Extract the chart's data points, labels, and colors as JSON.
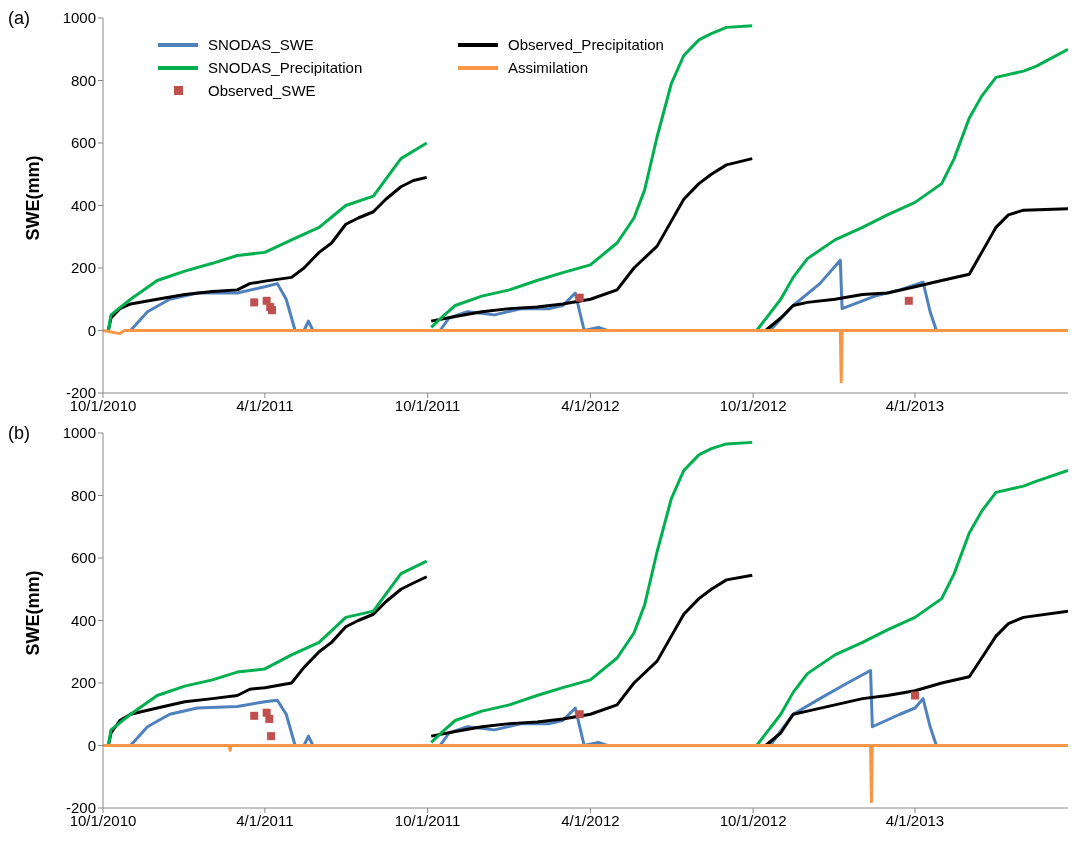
{
  "chart_data": [
    {
      "type": "line",
      "title": "(a)",
      "ylabel": "SWE(mm)",
      "xlim": [
        "2010-10-01",
        "2013-09-20"
      ],
      "xticks": [
        {
          "value": "2010-10-01",
          "label": "10/1/2010"
        },
        {
          "value": "2011-04-01",
          "label": "4/1/2011"
        },
        {
          "value": "2011-10-01",
          "label": "10/1/2011"
        },
        {
          "value": "2012-04-01",
          "label": "4/1/2012"
        },
        {
          "value": "2012-10-01",
          "label": "10/1/2012"
        },
        {
          "value": "2013-04-01",
          "label": "4/1/2013"
        }
      ],
      "ylim": [
        -200,
        1000
      ],
      "yticks": [
        -200,
        0,
        200,
        400,
        600,
        800,
        1000
      ],
      "legend": "top",
      "series": [
        {
          "name": "SNODAS_SWE",
          "color": "#4f81bd",
          "x": [
            "2010-11-01",
            "2010-11-20",
            "2010-12-15",
            "2011-01-15",
            "2011-03-01",
            "2011-04-01",
            "2011-04-15",
            "2011-04-25",
            "2011-05-05",
            "2011-05-15",
            "2011-05-20",
            "2011-05-25",
            "2011-10-01",
            "2011-10-15",
            "2011-10-25",
            "2011-11-15",
            "2011-12-15",
            "2012-01-15",
            "2012-02-15",
            "2012-03-01",
            "2012-03-15",
            "2012-03-25",
            "2012-04-10",
            "2012-04-20",
            "2012-10-01",
            "2012-10-20",
            "2012-11-15",
            "2012-12-15",
            "2013-01-07",
            "2013-01-09",
            "2013-02-15",
            "2013-03-15",
            "2013-04-10",
            "2013-04-18",
            "2013-04-25"
          ],
          "values": [
            0,
            60,
            100,
            120,
            120,
            140,
            150,
            100,
            0,
            0,
            30,
            0,
            null,
            0,
            40,
            60,
            50,
            70,
            70,
            80,
            120,
            0,
            10,
            0,
            null,
            0,
            80,
            150,
            225,
            70,
            110,
            130,
            155,
            60,
            0
          ]
        },
        {
          "name": "Observed_Precipitation",
          "color": "#000000",
          "x": [
            "2010-10-07",
            "2010-10-10",
            "2010-10-20",
            "2010-11-01",
            "2010-12-01",
            "2011-01-01",
            "2011-02-01",
            "2011-03-01",
            "2011-03-15",
            "2011-04-01",
            "2011-05-01",
            "2011-05-15",
            "2011-06-01",
            "2011-06-15",
            "2011-07-01",
            "2011-07-15",
            "2011-08-01",
            "2011-08-15",
            "2011-09-01",
            "2011-09-15",
            "2011-09-30",
            "2011-10-02",
            "2011-10-05",
            "2011-11-01",
            "2011-12-01",
            "2012-01-01",
            "2012-02-01",
            "2012-03-01",
            "2012-04-01",
            "2012-05-01",
            "2012-05-20",
            "2012-06-15",
            "2012-07-01",
            "2012-07-15",
            "2012-08-01",
            "2012-08-15",
            "2012-09-01",
            "2012-09-30",
            "2012-10-02",
            "2012-10-15",
            "2012-11-01",
            "2012-11-15",
            "2012-12-01",
            "2013-01-01",
            "2013-02-01",
            "2013-03-01",
            "2013-04-01",
            "2013-05-01",
            "2013-06-01",
            "2013-06-15",
            "2013-07-01",
            "2013-07-15",
            "2013-08-01",
            "2013-09-20"
          ],
          "values": [
            0,
            40,
            70,
            85,
            100,
            115,
            125,
            130,
            150,
            158,
            170,
            200,
            250,
            280,
            340,
            360,
            380,
            420,
            460,
            480,
            490,
            null,
            30,
            45,
            60,
            70,
            75,
            85,
            100,
            130,
            200,
            270,
            350,
            420,
            470,
            500,
            530,
            550,
            null,
            0,
            40,
            80,
            90,
            100,
            115,
            120,
            140,
            160,
            180,
            250,
            330,
            370,
            385,
            390
          ]
        },
        {
          "name": "SNODAS_Precipitation",
          "color": "#00b050",
          "x": [
            "2010-10-07",
            "2010-10-10",
            "2010-11-01",
            "2010-12-01",
            "2011-01-01",
            "2011-02-01",
            "2011-03-01",
            "2011-04-01",
            "2011-05-01",
            "2011-06-01",
            "2011-07-01",
            "2011-08-01",
            "2011-09-01",
            "2011-09-30",
            "2011-10-02",
            "2011-10-05",
            "2011-10-20",
            "2011-11-01",
            "2011-12-01",
            "2012-01-01",
            "2012-02-01",
            "2012-03-01",
            "2012-04-01",
            "2012-05-01",
            "2012-05-20",
            "2012-06-01",
            "2012-06-15",
            "2012-07-01",
            "2012-07-15",
            "2012-08-01",
            "2012-08-15",
            "2012-09-01",
            "2012-09-30",
            "2012-10-02",
            "2012-10-05",
            "2012-11-01",
            "2012-11-15",
            "2012-12-01",
            "2013-01-01",
            "2013-02-01",
            "2013-03-01",
            "2013-04-01",
            "2013-05-01",
            "2013-05-15",
            "2013-06-01",
            "2013-06-15",
            "2013-07-01",
            "2013-08-01",
            "2013-08-15",
            "2013-09-20"
          ],
          "values": [
            0,
            50,
            100,
            160,
            190,
            215,
            240,
            250,
            290,
            330,
            400,
            430,
            550,
            600,
            null,
            10,
            50,
            80,
            110,
            130,
            160,
            185,
            210,
            280,
            360,
            450,
            620,
            790,
            880,
            930,
            950,
            970,
            975,
            null,
            0,
            100,
            170,
            230,
            290,
            330,
            370,
            410,
            470,
            550,
            680,
            750,
            810,
            830,
            845,
            900
          ]
        },
        {
          "name": "Assimilation",
          "color": "#f79646",
          "x": [
            "2010-10-01",
            "2010-10-20",
            "2010-10-25",
            "2013-01-07",
            "2013-01-08",
            "2013-01-09",
            "2013-09-20"
          ],
          "values": [
            0,
            -10,
            0,
            0,
            -165,
            0,
            0
          ]
        },
        {
          "name": "Observed_SWE",
          "type": "scatter",
          "marker": "square",
          "color": "#c0504d",
          "x": [
            "2011-03-20",
            "2011-04-03",
            "2011-04-07",
            "2011-04-09",
            "2012-03-20",
            "2013-03-25"
          ],
          "values": [
            90,
            95,
            75,
            65,
            105,
            95
          ]
        }
      ]
    },
    {
      "type": "line",
      "title": "(b)",
      "ylabel": "SWE(mm)",
      "xlim": [
        "2010-10-01",
        "2013-09-20"
      ],
      "xticks": [
        {
          "value": "2010-10-01",
          "label": "10/1/2010"
        },
        {
          "value": "2011-04-01",
          "label": "4/1/2011"
        },
        {
          "value": "2011-10-01",
          "label": "10/1/2011"
        },
        {
          "value": "2012-04-01",
          "label": "4/1/2012"
        },
        {
          "value": "2012-10-01",
          "label": "10/1/2012"
        },
        {
          "value": "2013-04-01",
          "label": "4/1/2013"
        }
      ],
      "ylim": [
        -200,
        1000
      ],
      "yticks": [
        -200,
        0,
        200,
        400,
        600,
        800,
        1000
      ],
      "series": [
        {
          "color": "#4f81bd",
          "x": [
            "2010-11-01",
            "2010-11-20",
            "2010-12-15",
            "2011-01-15",
            "2011-03-01",
            "2011-04-01",
            "2011-04-15",
            "2011-04-25",
            "2011-05-05",
            "2011-05-15",
            "2011-05-20",
            "2011-05-25",
            "2011-10-01",
            "2011-10-15",
            "2011-10-25",
            "2011-11-15",
            "2011-12-15",
            "2012-01-15",
            "2012-02-15",
            "2012-03-01",
            "2012-03-15",
            "2012-03-25",
            "2012-04-10",
            "2012-04-20",
            "2012-10-01",
            "2012-10-20",
            "2012-11-15",
            "2012-12-15",
            "2013-01-15",
            "2013-02-10",
            "2013-02-12",
            "2013-03-15",
            "2013-04-01",
            "2013-04-10",
            "2013-04-18",
            "2013-04-25"
          ],
          "values": [
            0,
            60,
            100,
            120,
            125,
            140,
            145,
            100,
            0,
            0,
            30,
            0,
            null,
            0,
            40,
            60,
            50,
            70,
            70,
            80,
            120,
            0,
            10,
            0,
            null,
            0,
            100,
            150,
            200,
            240,
            60,
            100,
            120,
            150,
            60,
            0
          ]
        },
        {
          "color": "#000000",
          "x": [
            "2010-10-07",
            "2010-10-10",
            "2010-10-20",
            "2010-11-01",
            "2010-12-01",
            "2011-01-01",
            "2011-02-01",
            "2011-03-01",
            "2011-03-15",
            "2011-04-01",
            "2011-05-01",
            "2011-05-15",
            "2011-06-01",
            "2011-06-15",
            "2011-07-01",
            "2011-07-15",
            "2011-08-01",
            "2011-08-15",
            "2011-09-01",
            "2011-09-15",
            "2011-09-30",
            "2011-10-02",
            "2011-10-05",
            "2011-11-01",
            "2011-12-01",
            "2012-01-01",
            "2012-02-01",
            "2012-03-01",
            "2012-04-01",
            "2012-05-01",
            "2012-05-20",
            "2012-06-15",
            "2012-07-01",
            "2012-07-15",
            "2012-08-01",
            "2012-08-15",
            "2012-09-01",
            "2012-09-30",
            "2012-10-02",
            "2012-10-15",
            "2012-11-01",
            "2012-11-15",
            "2012-12-01",
            "2013-01-01",
            "2013-02-01",
            "2013-03-01",
            "2013-04-01",
            "2013-05-01",
            "2013-06-01",
            "2013-06-15",
            "2013-07-01",
            "2013-07-15",
            "2013-08-01",
            "2013-09-20"
          ],
          "values": [
            0,
            40,
            80,
            100,
            120,
            140,
            150,
            160,
            180,
            185,
            200,
            250,
            300,
            330,
            380,
            400,
            420,
            460,
            500,
            520,
            540,
            null,
            30,
            45,
            60,
            70,
            75,
            85,
            100,
            130,
            200,
            270,
            350,
            420,
            470,
            500,
            530,
            545,
            null,
            0,
            40,
            100,
            110,
            130,
            150,
            160,
            175,
            200,
            220,
            280,
            350,
            390,
            410,
            430
          ]
        },
        {
          "color": "#00b050",
          "x": [
            "2010-10-07",
            "2010-10-10",
            "2010-11-01",
            "2010-12-01",
            "2011-01-01",
            "2011-02-01",
            "2011-03-01",
            "2011-04-01",
            "2011-05-01",
            "2011-06-01",
            "2011-07-01",
            "2011-08-01",
            "2011-09-01",
            "2011-09-30",
            "2011-10-02",
            "2011-10-05",
            "2011-10-20",
            "2011-11-01",
            "2011-12-01",
            "2012-01-01",
            "2012-02-01",
            "2012-03-01",
            "2012-04-01",
            "2012-05-01",
            "2012-05-20",
            "2012-06-01",
            "2012-06-15",
            "2012-07-01",
            "2012-07-15",
            "2012-08-01",
            "2012-08-15",
            "2012-09-01",
            "2012-09-30",
            "2012-10-02",
            "2012-10-05",
            "2012-11-01",
            "2012-11-15",
            "2012-12-01",
            "2013-01-01",
            "2013-02-01",
            "2013-03-01",
            "2013-04-01",
            "2013-05-01",
            "2013-05-15",
            "2013-06-01",
            "2013-06-15",
            "2013-07-01",
            "2013-08-01",
            "2013-08-15",
            "2013-09-20"
          ],
          "values": [
            0,
            50,
            100,
            160,
            190,
            210,
            235,
            245,
            290,
            330,
            410,
            430,
            550,
            590,
            null,
            10,
            50,
            80,
            110,
            130,
            160,
            185,
            210,
            280,
            360,
            450,
            620,
            790,
            880,
            930,
            950,
            965,
            970,
            null,
            0,
            100,
            170,
            230,
            290,
            330,
            370,
            410,
            470,
            550,
            680,
            750,
            810,
            830,
            845,
            880
          ]
        },
        {
          "color": "#f79646",
          "x": [
            "2010-10-01",
            "2011-02-20",
            "2011-02-21",
            "2011-02-22",
            "2013-02-10",
            "2013-02-11",
            "2013-02-12",
            "2013-09-20"
          ],
          "values": [
            0,
            0,
            -15,
            0,
            0,
            -180,
            0,
            0
          ]
        },
        {
          "type": "scatter",
          "marker": "square",
          "color": "#c0504d",
          "x": [
            "2011-03-20",
            "2011-04-03",
            "2011-04-06",
            "2011-04-08",
            "2012-03-20",
            "2013-04-01"
          ],
          "values": [
            95,
            105,
            85,
            30,
            100,
            160
          ]
        }
      ]
    }
  ]
}
